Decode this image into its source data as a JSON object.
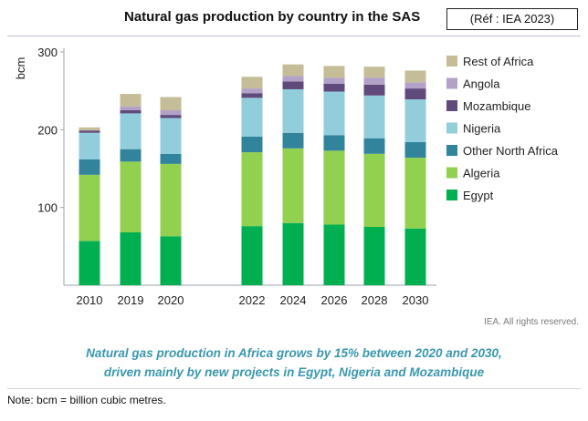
{
  "header": {
    "title": "Natural gas production by country in the SAS",
    "reference": "(Réf : IEA 2023)"
  },
  "footer": {
    "rights": "IEA. All rights reserved.",
    "caption_line1": "Natural gas production in Africa grows by 15% between 2020 and 2030,",
    "caption_line2": "driven mainly by new projects in Egypt, Nigeria and Mozambique",
    "note": "Note: bcm = billion cubic metres."
  },
  "chart_data": {
    "type": "bar",
    "stacked": true,
    "title": "Natural gas production by country in the SAS",
    "ylabel": "bcm",
    "xlabel": "",
    "ylim": [
      0,
      300
    ],
    "yticks": [
      100,
      200,
      300
    ],
    "grid": false,
    "legend_position": "top-right",
    "categories": [
      "2010",
      "2019",
      "2020",
      "2022",
      "2024",
      "2026",
      "2028",
      "2030"
    ],
    "series": [
      {
        "name": "Egypt",
        "color": "#00b050",
        "values": [
          57,
          68,
          63,
          76,
          80,
          78,
          75,
          73
        ]
      },
      {
        "name": "Algeria",
        "color": "#92d050",
        "values": [
          85,
          91,
          93,
          95,
          96,
          95,
          94,
          91
        ]
      },
      {
        "name": "Other North Africa",
        "color": "#31849b",
        "values": [
          20,
          16,
          13,
          20,
          20,
          20,
          20,
          20
        ]
      },
      {
        "name": "Nigeria",
        "color": "#92cddc",
        "values": [
          34,
          46,
          46,
          50,
          56,
          56,
          55,
          55
        ]
      },
      {
        "name": "Mozambique",
        "color": "#604a7b",
        "values": [
          3,
          4,
          4,
          6,
          10,
          10,
          14,
          14
        ]
      },
      {
        "name": "Angola",
        "color": "#b3a2c7",
        "values": [
          0,
          5,
          6,
          6,
          7,
          8,
          9,
          8
        ]
      },
      {
        "name": "Rest of Africa",
        "color": "#c4bd97",
        "values": [
          4,
          16,
          17,
          15,
          15,
          15,
          14,
          15
        ]
      }
    ]
  }
}
